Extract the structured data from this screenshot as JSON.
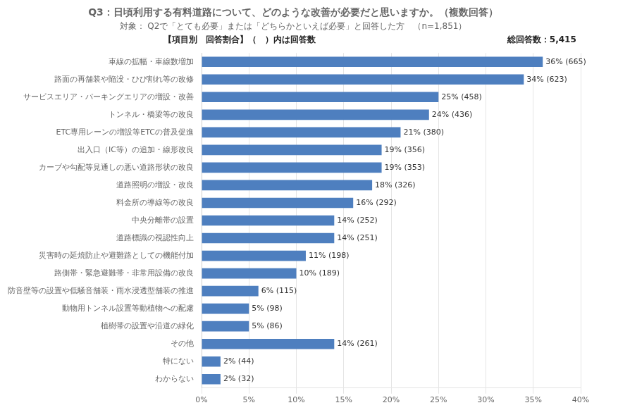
{
  "chart_data": {
    "type": "bar",
    "orientation": "horizontal",
    "title": "Q3：日頃利用する有料道路について、どのような改善が必要だと思いますか。（複数回答）",
    "subtitle": "対象： Q2で「とても必要」または「どちらかといえば必要」と回答した方　（n=1,851）",
    "annotations": [
      "【項目別　回答割合】（　）内は回答数",
      "総回答数：5,415"
    ],
    "categories": [
      "車線の拡幅・車線数増加",
      "路面の再舗装や陥没・ひび割れ等の改修",
      "サービスエリア・パーキングエリアの増設・改善",
      "トンネル・橋梁等の改良",
      "ETC専用レーンの増設等ETCの普及促進",
      "出入口（IC等）の追加・線形改良",
      "カーブや勾配等見通しの悪い道路形状の改良",
      "道路照明の増設・改良",
      "料金所の導線等の改良",
      "中央分離帯の設置",
      "道路標識の視認性向上",
      "災害時の延焼防止や避難路としての機能付加",
      "路側帯・緊急避難帯・非常用設備の改良",
      "防音壁等の設置や低騒音舗装・雨水浸透型舗装の推進",
      "動物用トンネル設置等動植物への配慮",
      "植樹帯の設置や沿道の緑化",
      "その他",
      "特にない",
      "わからない"
    ],
    "values": [
      36,
      34,
      25,
      24,
      21,
      19,
      19,
      18,
      16,
      14,
      14,
      11,
      10,
      6,
      5,
      5,
      14,
      2,
      2
    ],
    "value_labels": [
      "36% (665)",
      "34% (623)",
      "25% (458)",
      "24% (436)",
      "21% (380)",
      "19% (356)",
      "19% (353)",
      "18% (326)",
      "16% (292)",
      "14% (252)",
      "14% (251)",
      "11% (198)",
      "10% (189)",
      "6% (115)",
      "5% (98)",
      "5% (86)",
      "14% (261)",
      "2% (44)",
      "2% (32)"
    ],
    "data_labels": true,
    "color": "#4e7fbf",
    "xlim": [
      0,
      40
    ],
    "xticks": [
      {
        "value": 0,
        "label": "0%"
      },
      {
        "value": 5,
        "label": "5%"
      },
      {
        "value": 10,
        "label": "10%"
      },
      {
        "value": 15,
        "label": "15%"
      },
      {
        "value": 20,
        "label": "20%"
      },
      {
        "value": 25,
        "label": "25%"
      },
      {
        "value": 30,
        "label": "30%"
      },
      {
        "value": 35,
        "label": "35%"
      },
      {
        "value": 40,
        "label": "40%"
      }
    ],
    "grid": true
  }
}
